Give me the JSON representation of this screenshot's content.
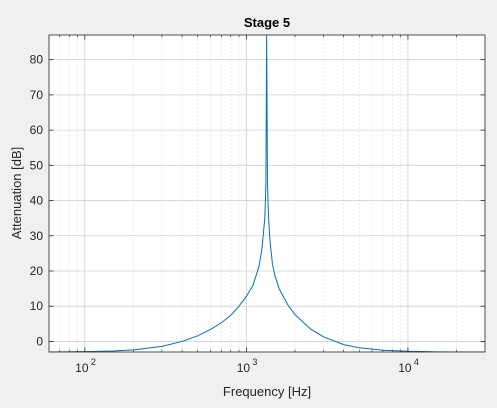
{
  "chart_data": {
    "type": "line",
    "title": "Stage 5",
    "xlabel": "Frequency [Hz]",
    "ylabel": "Attenuation [dB]",
    "x_scale": "log",
    "xlim": [
      60,
      30000
    ],
    "ylim": [
      -3,
      87
    ],
    "x_ticks": [
      {
        "value": 100,
        "base": "10",
        "exp": "2"
      },
      {
        "value": 1000,
        "base": "10",
        "exp": "3"
      },
      {
        "value": 10000,
        "base": "10",
        "exp": "4"
      }
    ],
    "y_ticks": [
      0,
      10,
      20,
      30,
      40,
      50,
      60,
      70,
      80
    ],
    "grid": true,
    "line_color": "#0072bd",
    "series": [
      {
        "x": [
          60,
          100,
          150,
          200,
          300,
          400,
          500,
          600,
          700,
          800,
          900,
          1000,
          1100,
          1200,
          1250,
          1300,
          1320,
          1335,
          1350,
          1365,
          1380,
          1400,
          1450,
          1500,
          1600,
          1800,
          2000,
          2500,
          3000,
          4000,
          5000,
          7000,
          10000,
          15000,
          20000,
          30000
        ],
        "y": [
          -3,
          -2.9,
          -2.7,
          -2.4,
          -1.4,
          0,
          1.6,
          3.4,
          5.3,
          7.4,
          10,
          12.8,
          16,
          21.5,
          26.5,
          35,
          44,
          87,
          46,
          38,
          33,
          28.5,
          22,
          18.7,
          14.8,
          10.5,
          7.6,
          3.5,
          1.3,
          -0.9,
          -1.8,
          -2.5,
          -2.8,
          -2.95,
          -3,
          -3
        ]
      }
    ]
  }
}
